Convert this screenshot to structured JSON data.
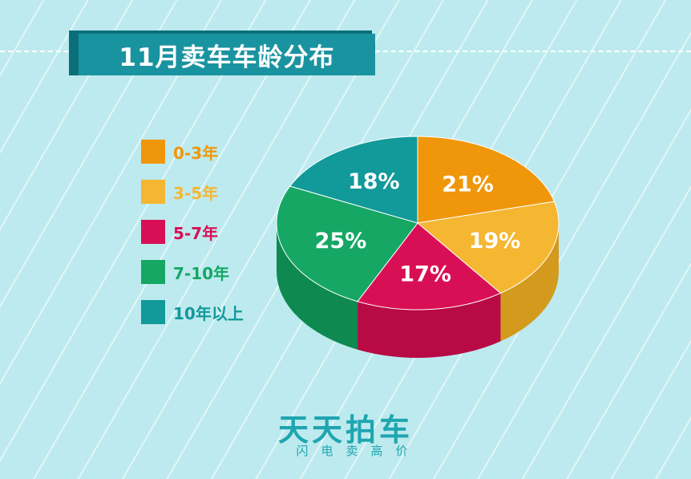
{
  "title": "11月卖车车龄分布",
  "colors": {
    "background": "#bdeaee",
    "brand": "#1fa5b0"
  },
  "chart_data": {
    "type": "pie",
    "title": "11月卖车车龄分布",
    "legend_position": "left",
    "slices": [
      {
        "label": "0-3年",
        "value": 21,
        "display": "21%",
        "color": "#f0960a",
        "side_color": "#c97a05"
      },
      {
        "label": "3-5年",
        "value": 19,
        "display": "19%",
        "color": "#f5b632",
        "side_color": "#d49a1e"
      },
      {
        "label": "5-7年",
        "value": 17,
        "display": "17%",
        "color": "#d90f55",
        "side_color": "#b80a45"
      },
      {
        "label": "7-10年",
        "value": 25,
        "display": "25%",
        "color": "#16a765",
        "side_color": "#0e8a50"
      },
      {
        "label": "10年以上",
        "value": 18,
        "display": "18%",
        "color": "#12999a",
        "side_color": "#0a7d7e"
      }
    ]
  },
  "brand": {
    "name": "天天拍车",
    "slogan": "闪电卖高价"
  }
}
